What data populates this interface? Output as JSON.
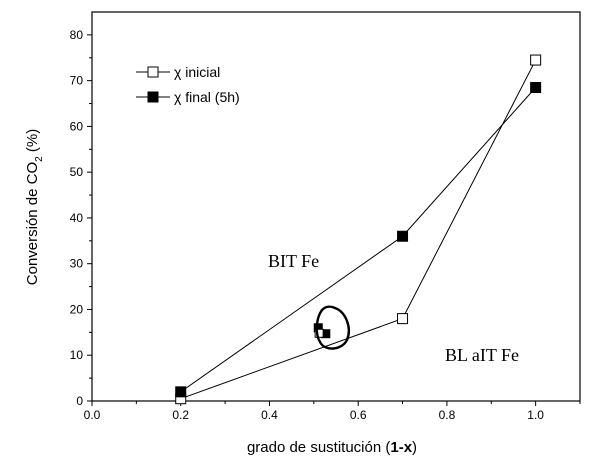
{
  "chart_data": {
    "type": "scatter",
    "xlabel": "grado de sustitución (1-x)",
    "ylabel": "Conversión de CO₂ (%)",
    "xlim": [
      0.0,
      1.1
    ],
    "ylim": [
      0,
      85
    ],
    "xticks": [
      "0.0",
      "0.2",
      "0.4",
      "0.6",
      "0.8",
      "1.0"
    ],
    "yticks": [
      "0",
      "10",
      "20",
      "30",
      "40",
      "50",
      "60",
      "70",
      "80"
    ],
    "grid": false,
    "legend_position": "top-left",
    "series": [
      {
        "name": "χ inicial",
        "marker": "open-square",
        "x": [
          0.2,
          0.7,
          1.0
        ],
        "y": [
          0.5,
          18,
          74.5
        ]
      },
      {
        "name": "χ final (5h)",
        "marker": "filled-square",
        "x": [
          0.2,
          0.7,
          1.0
        ],
        "y": [
          2,
          36,
          68.5
        ]
      }
    ],
    "lines": [
      {
        "name": "BITFe",
        "x": [
          0.2,
          0.7,
          1.0
        ],
        "y": [
          2,
          36,
          68.5
        ]
      },
      {
        "name": "BLaITFe",
        "x": [
          0.2,
          0.7,
          1.0
        ],
        "y": [
          0.5,
          18,
          74.5
        ]
      }
    ],
    "annotations": [
      {
        "text": "BIT Fe"
      },
      {
        "text": "BL aIT Fe"
      }
    ],
    "extra_points": [
      {
        "marker": "filled-square",
        "x": 0.51,
        "y": 16
      },
      {
        "marker": "filled-square",
        "x": 0.527,
        "y": 14.7
      },
      {
        "marker": "open-square",
        "x": 0.512,
        "y": 14.8
      }
    ],
    "extra_points_outline": "circled cluster near x=0.52"
  },
  "labels": {
    "xlabel_prefix": "grado de sustitución (",
    "xlabel_bold": "1-x",
    "xlabel_suffix": ")",
    "ylabel_main": "Conversión de CO",
    "ylabel_sub": "2",
    "ylabel_suffix": " (%)"
  },
  "colors": {
    "axis": "#000000",
    "line": "#000000",
    "marker_fill": "#000000",
    "background": "#ffffff"
  }
}
